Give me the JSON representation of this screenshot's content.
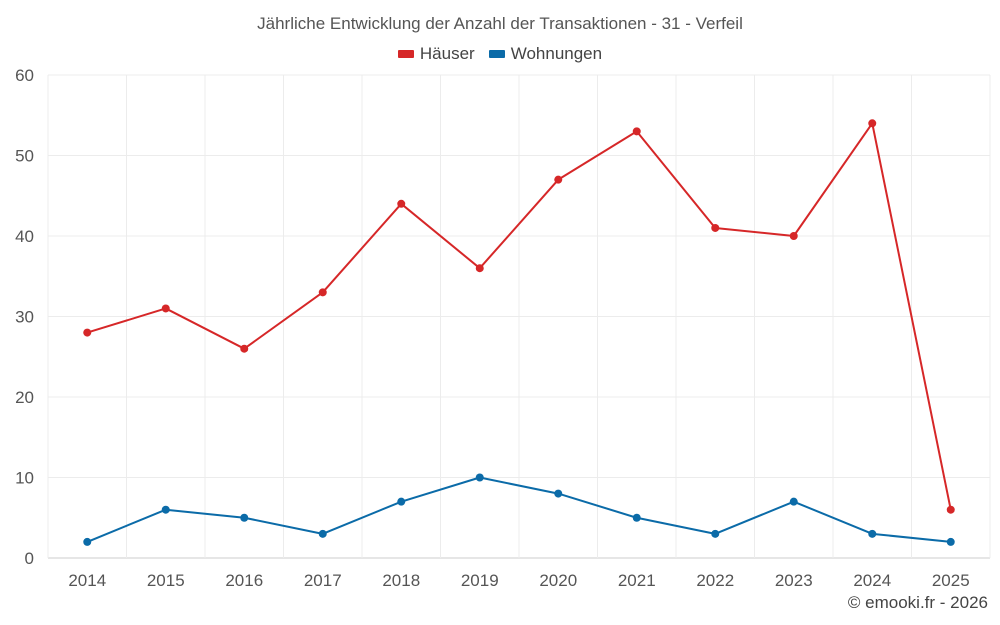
{
  "chart_data": {
    "type": "line",
    "title": "Jährliche Entwicklung der Anzahl der Transaktionen - 31 - Verfeil",
    "xlabel": "",
    "ylabel": "",
    "categories": [
      "2014",
      "2015",
      "2016",
      "2017",
      "2018",
      "2019",
      "2020",
      "2021",
      "2022",
      "2023",
      "2024",
      "2025"
    ],
    "ylim": [
      0,
      60
    ],
    "yticks": [
      0,
      10,
      20,
      30,
      40,
      50,
      60
    ],
    "grid": true,
    "legend_position": "top-center",
    "series": [
      {
        "name": "Häuser",
        "color": "#d62728",
        "values": [
          28,
          31,
          26,
          33,
          44,
          36,
          47,
          53,
          41,
          40,
          54,
          6
        ]
      },
      {
        "name": "Wohnungen",
        "color": "#0b6ba8",
        "values": [
          2,
          6,
          5,
          3,
          7,
          10,
          8,
          5,
          3,
          7,
          3,
          2
        ]
      }
    ]
  },
  "credit": "© emooki.fr - 2026"
}
